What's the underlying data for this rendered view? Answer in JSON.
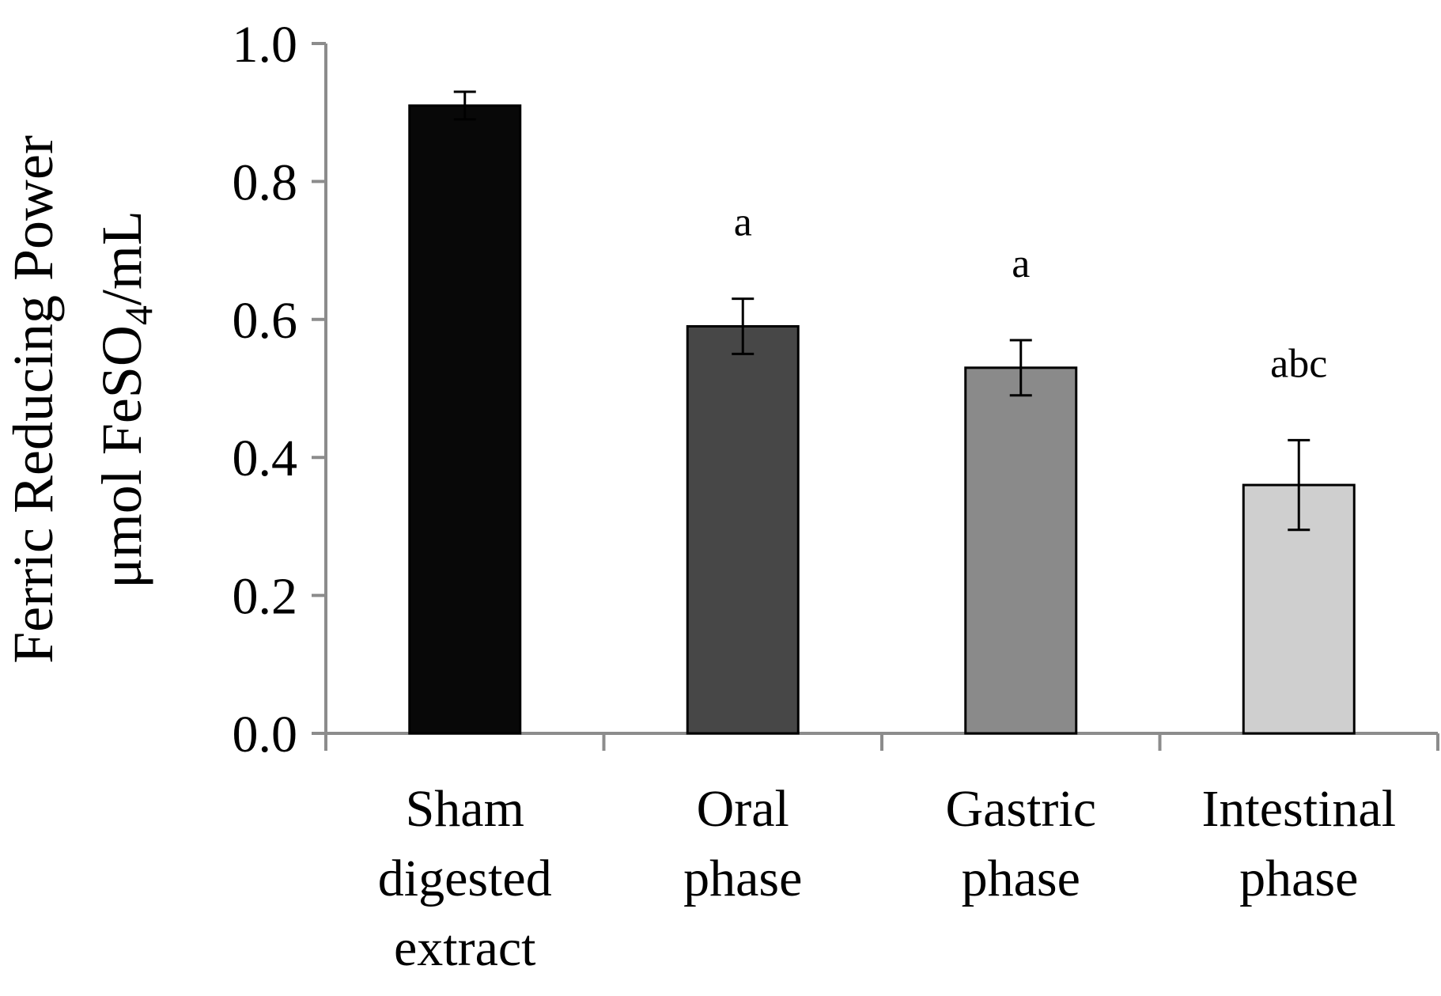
{
  "chart_data": {
    "type": "bar",
    "title": "",
    "xlabel": "",
    "ylabel_line1": "Ferric Reducing Power",
    "ylabel_line2_main": "μmol FeSO",
    "ylabel_line2_sub": "4",
    "ylabel_line2_tail": "/mL",
    "ylim": [
      0,
      1.0
    ],
    "yticks": [
      "0.0",
      "0.2",
      "0.4",
      "0.6",
      "0.8",
      "1.0"
    ],
    "ytick_values": [
      0.0,
      0.2,
      0.4,
      0.6,
      0.8,
      1.0
    ],
    "grid": false,
    "categories": [
      [
        "Sham",
        "digested",
        "extract"
      ],
      [
        "Oral",
        "phase"
      ],
      [
        "Gastric",
        "phase"
      ],
      [
        "Intestinal",
        "phase"
      ]
    ],
    "values": [
      0.91,
      0.59,
      0.53,
      0.36
    ],
    "errors": [
      0.02,
      0.04,
      0.04,
      0.065
    ],
    "significance": [
      "",
      "a",
      "a",
      "abc"
    ],
    "bar_colors": [
      "#080808",
      "#474747",
      "#8a8a8a",
      "#cfcfcf"
    ]
  }
}
